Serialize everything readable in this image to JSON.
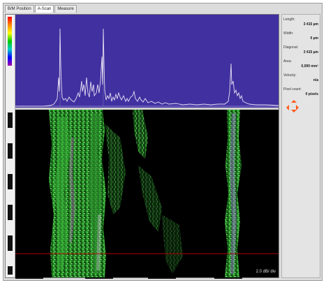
{
  "tabs": [
    {
      "label": "B/M Position",
      "active": false
    },
    {
      "label": "A-Scan",
      "active": true
    },
    {
      "label": "Measure",
      "active": false
    }
  ],
  "fields": [
    {
      "label": "Length:",
      "value": "3 415 µm"
    },
    {
      "label": "Width:",
      "value": "0 µm"
    },
    {
      "label": "Diagonal:",
      "value": "3 415 µm"
    },
    {
      "label": "Area:",
      "value": "0,000 mm²"
    },
    {
      "label": "Velocity:",
      "value": "n/a"
    },
    {
      "label": "Pixel count:",
      "value": "0 pixels"
    }
  ],
  "scale_label": "2.0 dB/ div",
  "colors": {
    "window_bg": "#dcdcdc",
    "spectrum_bg": "#4030a0",
    "trace": "#e8e0f4",
    "bscan_bg": "#000000",
    "tissue_green": "#2ea82e",
    "marker_line": "#b00000",
    "nav_arrows": "#ff5a1e"
  },
  "icons": [
    "color-scale-icon",
    "direction-pad-icon"
  ]
}
